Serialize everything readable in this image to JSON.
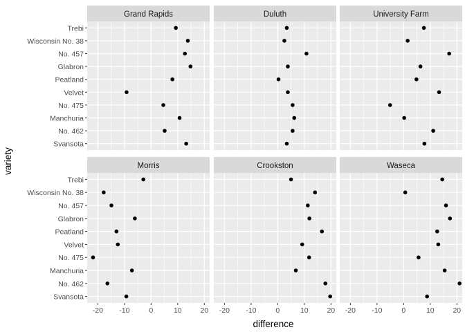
{
  "chart_data": {
    "type": "scatter",
    "xlabel": "difference",
    "ylabel": "variety",
    "xlim": [
      -24,
      22
    ],
    "xticks": [
      -20,
      -10,
      0,
      10,
      20
    ],
    "xtick_labels": [
      "-20",
      "-10",
      "0",
      "10",
      "20"
    ],
    "grid": true,
    "categories": [
      "Trebi",
      "Wisconsin No. 38",
      "No. 457",
      "Glabron",
      "Peatland",
      "Velvet",
      "No. 475",
      "Manchuria",
      "No. 462",
      "Svansota"
    ],
    "panels": [
      {
        "name": "Grand Rapids",
        "values": [
          9.3,
          13.8,
          12.7,
          14.8,
          8.0,
          -9.2,
          4.6,
          10.7,
          5.1,
          13.2
        ]
      },
      {
        "name": "Duluth",
        "values": [
          3.4,
          2.5,
          10.8,
          3.8,
          0.3,
          3.8,
          5.6,
          6.2,
          5.6,
          3.4
        ]
      },
      {
        "name": "University Farm",
        "values": [
          7.6,
          1.5,
          17.1,
          6.3,
          4.8,
          13.3,
          -5.1,
          0.2,
          11.1,
          7.8
        ]
      },
      {
        "name": "Morris",
        "values": [
          -2.9,
          -17.8,
          -14.9,
          -6.1,
          -13.0,
          -12.5,
          -21.8,
          -7.2,
          -16.4,
          -9.3
        ]
      },
      {
        "name": "Crookston",
        "values": [
          5.0,
          14.0,
          11.3,
          11.9,
          16.6,
          9.2,
          11.8,
          6.8,
          17.9,
          19.7
        ]
      },
      {
        "name": "Waseca",
        "values": [
          14.5,
          0.6,
          15.9,
          17.4,
          12.6,
          13.0,
          5.6,
          15.4,
          21.0,
          8.8
        ]
      }
    ]
  }
}
